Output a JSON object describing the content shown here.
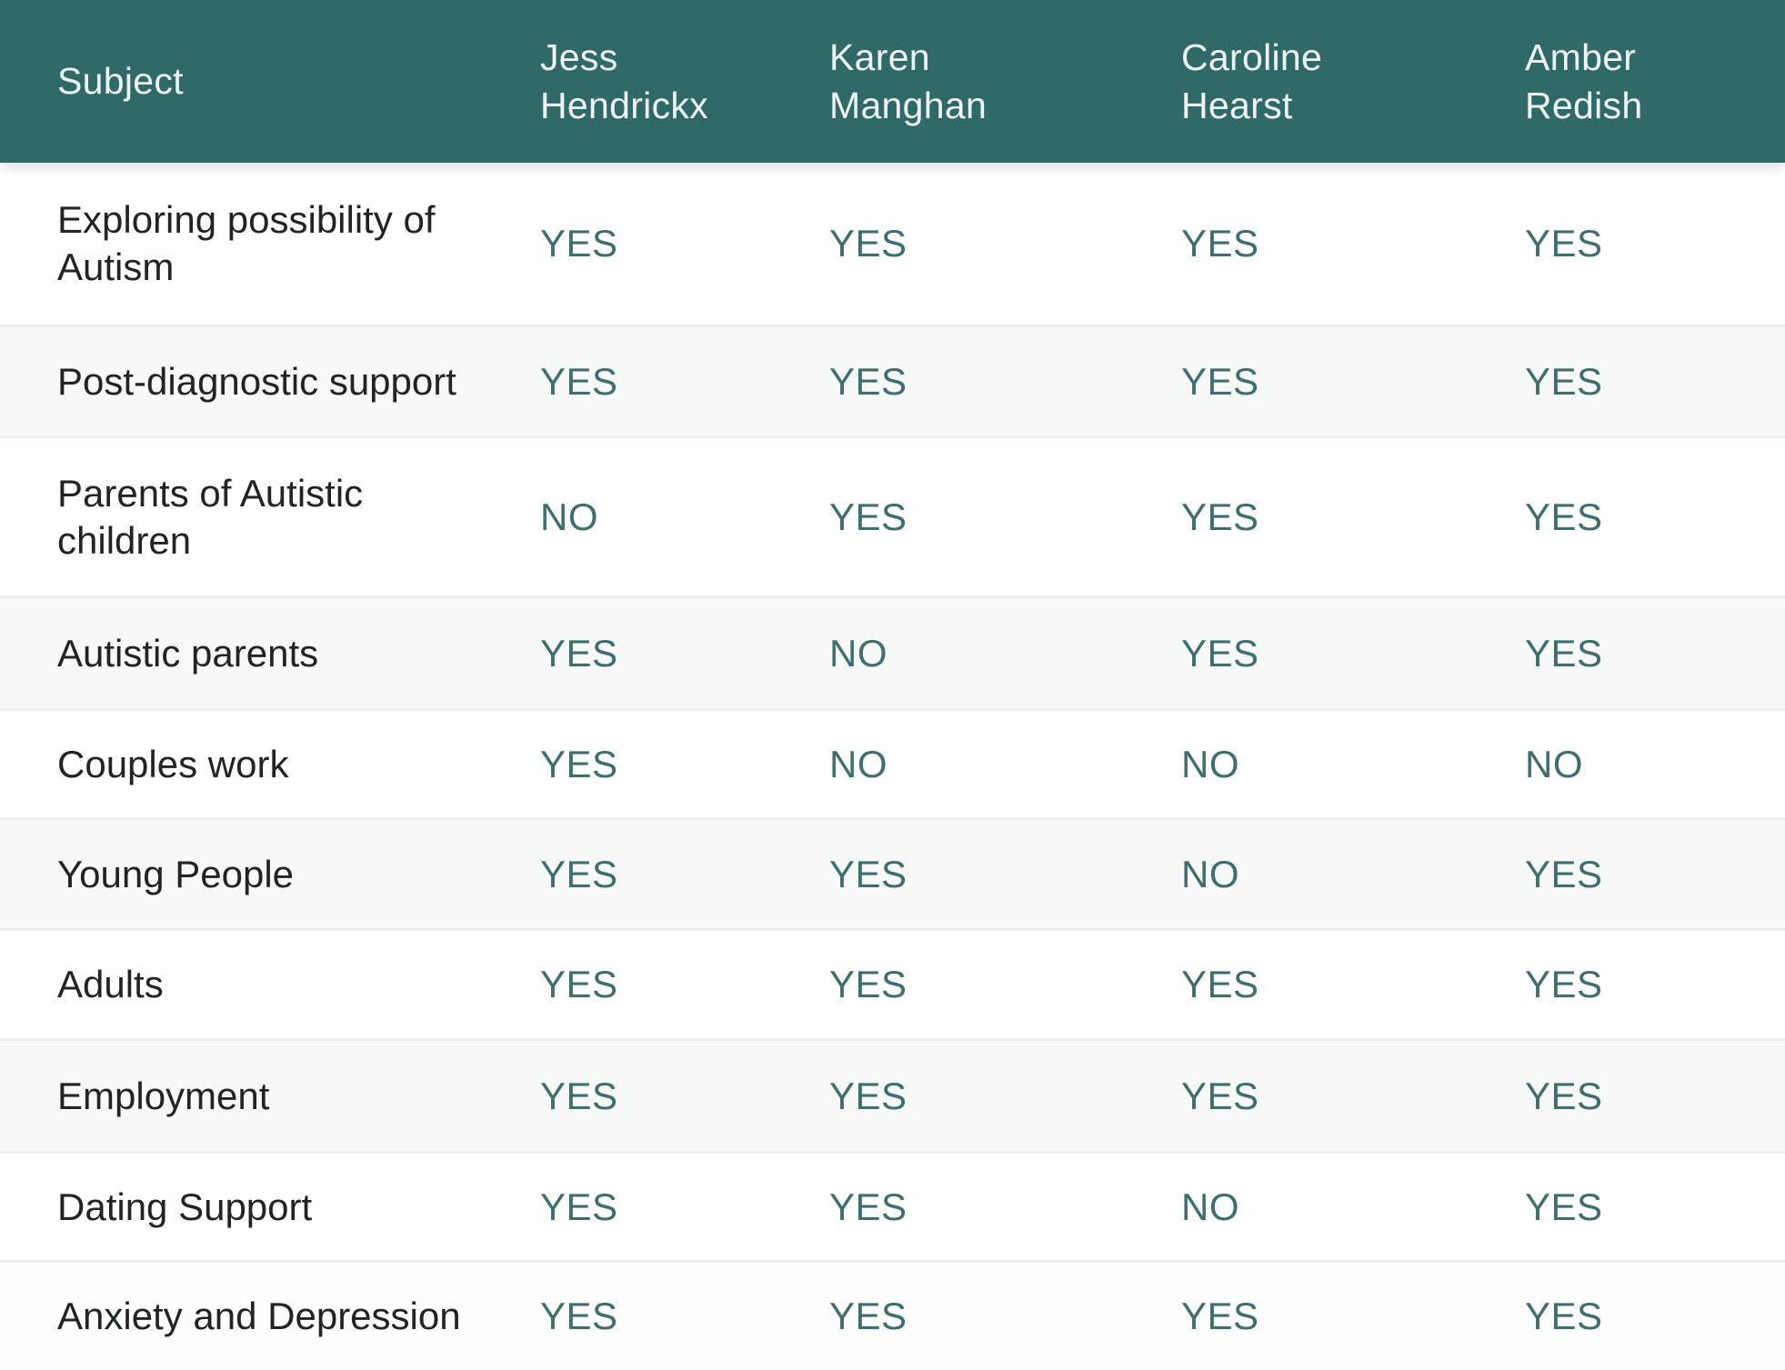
{
  "chart_data": {
    "type": "table",
    "title": "",
    "columns": [
      "Subject",
      "Jess\nHendrickx",
      "Karen\nManghan",
      "Caroline\nHearst",
      "Amber\nRedish"
    ],
    "rows": [
      {
        "subject": "Exploring possibility of\nAutism",
        "values": [
          "YES",
          "YES",
          "YES",
          "YES"
        ]
      },
      {
        "subject": "Post-diagnostic support",
        "values": [
          "YES",
          "YES",
          "YES",
          "YES"
        ]
      },
      {
        "subject": "Parents of Autistic\nchildren",
        "values": [
          "NO",
          "YES",
          "YES",
          "YES"
        ]
      },
      {
        "subject": "Autistic parents",
        "values": [
          "YES",
          "NO",
          "YES",
          "YES"
        ]
      },
      {
        "subject": "Couples work",
        "values": [
          "YES",
          "NO",
          "NO",
          "NO"
        ]
      },
      {
        "subject": "Young People",
        "values": [
          "YES",
          "YES",
          "NO",
          "YES"
        ]
      },
      {
        "subject": "Adults",
        "values": [
          "YES",
          "YES",
          "YES",
          "YES"
        ]
      },
      {
        "subject": "Employment",
        "values": [
          "YES",
          "YES",
          "YES",
          "YES"
        ]
      },
      {
        "subject": "Dating Support",
        "values": [
          "YES",
          "YES",
          "NO",
          "YES"
        ]
      },
      {
        "subject": "Anxiety and Depression",
        "values": [
          "YES",
          "YES",
          "YES",
          "YES"
        ]
      }
    ]
  },
  "colors": {
    "header_bg": "#306a68",
    "header_text": "#eef4f3",
    "subject_text": "#212425",
    "value_text": "#3e6f6e",
    "stripe_bg": "#f7f8f8"
  }
}
